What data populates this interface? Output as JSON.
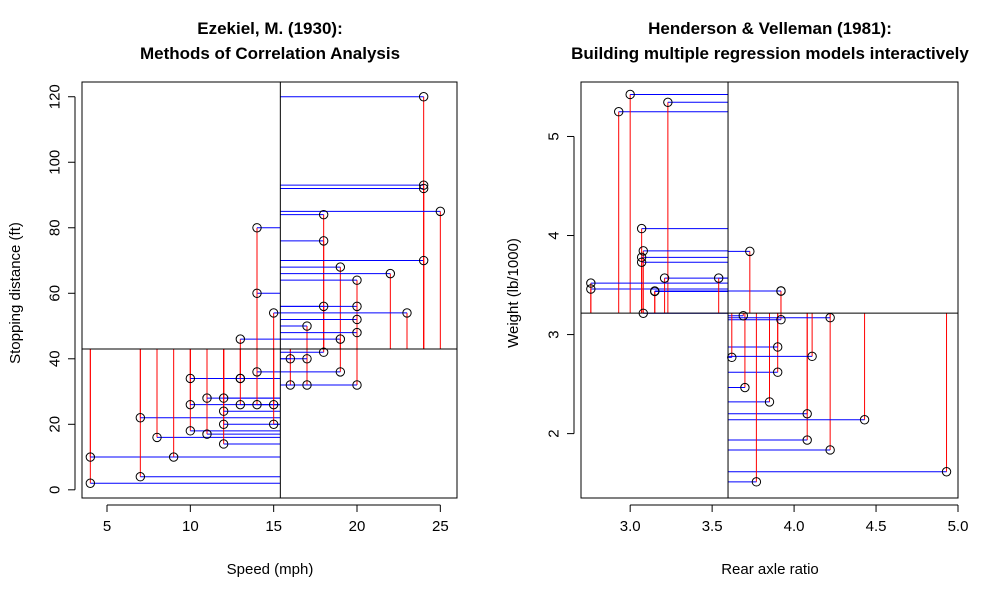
{
  "colors": {
    "point_stroke": "#000000",
    "vertical_segment": "#ff0000",
    "horizontal_segment": "#0000ff",
    "mean_line": "#000000",
    "frame": "#000000"
  },
  "chart_data": [
    {
      "type": "scatter",
      "title_line1": "Ezekiel, M. (1930):",
      "title_line2": "Methods of Correlation Analysis",
      "xlabel": "Speed (mph)",
      "ylabel": "Stopping distance (ft)",
      "xlim": [
        3.5,
        26
      ],
      "ylim": [
        -2.5,
        124.5
      ],
      "xticks": [
        5,
        10,
        15,
        20,
        25
      ],
      "yticks": [
        0,
        20,
        40,
        60,
        80,
        100,
        120
      ],
      "mean_x": 15.4,
      "mean_y": 42.98,
      "grid": false,
      "legend": "none",
      "x": [
        4,
        4,
        7,
        7,
        8,
        9,
        10,
        10,
        10,
        11,
        11,
        12,
        12,
        12,
        12,
        13,
        13,
        13,
        13,
        14,
        14,
        14,
        14,
        15,
        15,
        15,
        16,
        16,
        17,
        17,
        17,
        18,
        18,
        18,
        18,
        19,
        19,
        19,
        20,
        20,
        20,
        20,
        20,
        22,
        23,
        24,
        24,
        24,
        24,
        25
      ],
      "y": [
        2,
        10,
        4,
        22,
        16,
        10,
        18,
        26,
        34,
        17,
        28,
        14,
        20,
        24,
        28,
        26,
        34,
        34,
        46,
        26,
        36,
        60,
        80,
        20,
        26,
        54,
        32,
        40,
        32,
        40,
        50,
        42,
        56,
        76,
        84,
        36,
        46,
        68,
        32,
        48,
        52,
        56,
        64,
        66,
        54,
        70,
        92,
        93,
        120,
        85
      ]
    },
    {
      "type": "scatter",
      "title_line1": "Henderson & Velleman (1981):",
      "title_line2": "Building multiple regression models interactively",
      "xlabel": "Rear axle ratio",
      "ylabel": "Weight (lb/1000)",
      "xlim": [
        2.7,
        5.0
      ],
      "ylim": [
        1.35,
        5.55
      ],
      "xticks": [
        3.0,
        3.5,
        4.0,
        4.5,
        5.0
      ],
      "xtick_labels": [
        "3.0",
        "3.5",
        "4.0",
        "4.5",
        "5.0"
      ],
      "yticks": [
        2,
        3,
        4,
        5
      ],
      "mean_x": 3.597,
      "mean_y": 3.217,
      "grid": false,
      "legend": "none",
      "x": [
        3.9,
        3.9,
        3.85,
        3.08,
        3.15,
        2.76,
        3.21,
        3.69,
        3.92,
        3.92,
        3.92,
        3.07,
        3.07,
        3.07,
        2.93,
        3.0,
        3.23,
        4.08,
        4.93,
        4.22,
        3.7,
        2.76,
        3.15,
        3.73,
        3.08,
        4.08,
        4.43,
        3.77,
        4.22,
        3.62,
        3.54,
        4.11
      ],
      "y": [
        2.62,
        2.875,
        2.32,
        3.215,
        3.44,
        3.46,
        3.57,
        3.19,
        3.15,
        3.44,
        3.44,
        4.07,
        3.73,
        3.78,
        5.25,
        5.424,
        5.345,
        2.2,
        1.615,
        1.835,
        2.465,
        3.52,
        3.435,
        3.84,
        3.845,
        1.935,
        2.14,
        1.513,
        3.17,
        2.77,
        3.57,
        2.78
      ]
    }
  ]
}
